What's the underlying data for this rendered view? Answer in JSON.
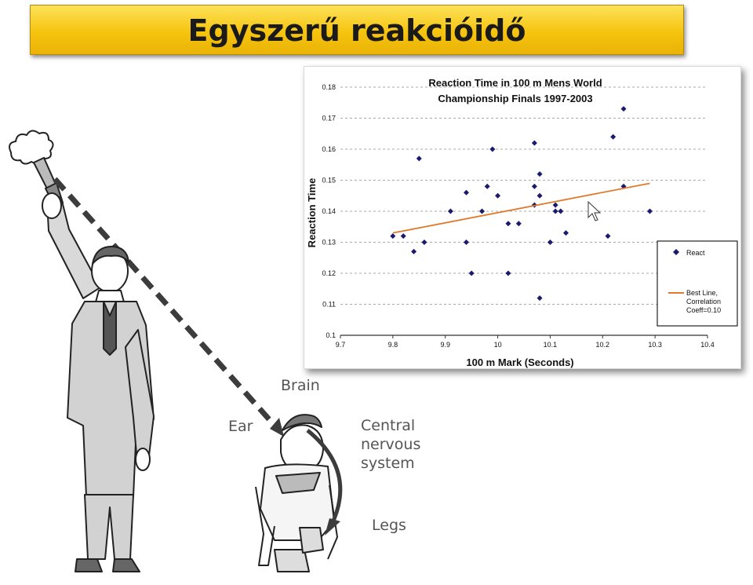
{
  "page": {
    "title": "Egyszerű reakcióidő"
  },
  "diagram": {
    "labels": {
      "brain": "Brain",
      "ear": "Ear",
      "cns": "Central\nnervous\nsystem",
      "legs": "Legs"
    }
  },
  "chart_data": {
    "type": "scatter",
    "title": "Reaction Time in 100 m Mens World Championship Finals 1997-2003",
    "title_lines": [
      "Reaction Time in 100 m Mens World",
      "Championship Finals 1997-2003"
    ],
    "xlabel": "100 m Mark (Seconds)",
    "ylabel": "Reaction Time",
    "xlim": [
      9.7,
      10.4
    ],
    "ylim": [
      0.1,
      0.18
    ],
    "xticks": [
      "9.7",
      "9.8",
      "9.9",
      "10",
      "10.1",
      "10.2",
      "10.3",
      "10.4"
    ],
    "yticks": [
      "0.1",
      "0.11",
      "0.12",
      "0.13",
      "0.14",
      "0.15",
      "0.16",
      "0.17",
      "0.18"
    ],
    "grid": true,
    "legend_position": "right",
    "series": [
      {
        "name": "React",
        "color": "#1a1a6e",
        "marker": "diamond",
        "points": [
          [
            9.8,
            0.132
          ],
          [
            9.82,
            0.132
          ],
          [
            9.84,
            0.127
          ],
          [
            9.85,
            0.157
          ],
          [
            9.86,
            0.13
          ],
          [
            9.91,
            0.14
          ],
          [
            9.94,
            0.146
          ],
          [
            9.94,
            0.13
          ],
          [
            9.95,
            0.12
          ],
          [
            9.97,
            0.14
          ],
          [
            9.98,
            0.148
          ],
          [
            9.99,
            0.16
          ],
          [
            10.0,
            0.145
          ],
          [
            10.02,
            0.136
          ],
          [
            10.02,
            0.12
          ],
          [
            10.04,
            0.136
          ],
          [
            10.07,
            0.162
          ],
          [
            10.07,
            0.148
          ],
          [
            10.07,
            0.142
          ],
          [
            10.08,
            0.152
          ],
          [
            10.08,
            0.145
          ],
          [
            10.08,
            0.112
          ],
          [
            10.1,
            0.13
          ],
          [
            10.11,
            0.14
          ],
          [
            10.11,
            0.142
          ],
          [
            10.12,
            0.14
          ],
          [
            10.13,
            0.133
          ],
          [
            10.21,
            0.132
          ],
          [
            10.22,
            0.164
          ],
          [
            10.24,
            0.173
          ],
          [
            10.24,
            0.148
          ],
          [
            10.29,
            0.14
          ]
        ]
      },
      {
        "name": "Best Line, Correlation Coeff=0.10",
        "legend_lines": [
          "Best Line,",
          "Correlation",
          "Coeff=0.10"
        ],
        "color": "#e07a2c",
        "type": "line",
        "points": [
          [
            9.8,
            0.133
          ],
          [
            10.29,
            0.149
          ]
        ]
      }
    ]
  },
  "colors": {
    "title_bar": "#f6c40f",
    "marker": "#1a1a6e",
    "trend": "#e07a2c",
    "diagram_gray": "#555555"
  }
}
